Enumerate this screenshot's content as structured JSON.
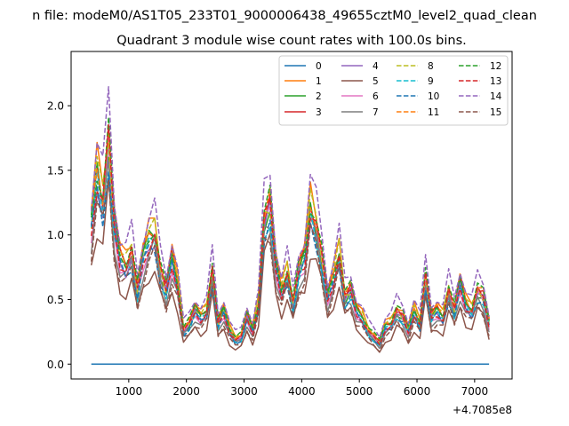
{
  "suptitle": "n file: modeM0/AS1T05_233T01_9000006438_49655cztM0_level2_quad_clean",
  "chart_data": {
    "type": "line",
    "title": "Quadrant 3 module wise count rates with 100.0s bins.",
    "xlabel": "",
    "ylabel": "",
    "x_offset_label": "+4.7085e8",
    "xlim": [
      0,
      7650
    ],
    "ylim": [
      -0.115,
      2.42
    ],
    "xticks": [
      1000,
      2000,
      3000,
      4000,
      5000,
      6000,
      7000
    ],
    "yticks": [
      0.0,
      0.5,
      1.0,
      1.5,
      2.0
    ],
    "ytick_labels": [
      "0.0",
      "0.5",
      "1.0",
      "1.5",
      "2.0"
    ],
    "grid": false,
    "legend_position": "top-right",
    "legend_columns": 4,
    "x": [
      350,
      450,
      550,
      650,
      750,
      850,
      950,
      1050,
      1150,
      1250,
      1350,
      1450,
      1550,
      1650,
      1750,
      1850,
      1950,
      2050,
      2150,
      2250,
      2350,
      2450,
      2550,
      2650,
      2750,
      2850,
      2950,
      3050,
      3150,
      3250,
      3350,
      3450,
      3550,
      3650,
      3750,
      3850,
      3950,
      4050,
      4150,
      4250,
      4350,
      4450,
      4550,
      4650,
      4750,
      4850,
      4950,
      5050,
      5150,
      5250,
      5350,
      5450,
      5550,
      5650,
      5750,
      5850,
      5950,
      6050,
      6150,
      6250,
      6350,
      6450,
      6550,
      6650,
      6750,
      6850,
      6950,
      7050,
      7150,
      7250
    ],
    "base": [
      1.05,
      1.45,
      1.25,
      1.7,
      1.05,
      0.8,
      0.75,
      0.85,
      0.55,
      0.8,
      0.95,
      1.0,
      0.7,
      0.55,
      0.8,
      0.6,
      0.25,
      0.3,
      0.4,
      0.35,
      0.4,
      0.7,
      0.3,
      0.4,
      0.25,
      0.18,
      0.2,
      0.35,
      0.25,
      0.45,
      1.1,
      1.2,
      0.75,
      0.55,
      0.7,
      0.45,
      0.7,
      0.8,
      1.2,
      1.05,
      0.8,
      0.5,
      0.65,
      0.85,
      0.5,
      0.55,
      0.4,
      0.35,
      0.25,
      0.2,
      0.15,
      0.28,
      0.3,
      0.4,
      0.35,
      0.25,
      0.4,
      0.3,
      0.65,
      0.35,
      0.4,
      0.35,
      0.55,
      0.4,
      0.6,
      0.45,
      0.4,
      0.55,
      0.5,
      0.3
    ],
    "series": [
      {
        "name": "0",
        "color": "#1f77b4",
        "dash": false,
        "scale": 0.0,
        "offset": 0.0,
        "phase": 0.0
      },
      {
        "name": "1",
        "color": "#ff7f0e",
        "dash": false,
        "scale": 1.08,
        "offset": 0.02,
        "phase": 0.3
      },
      {
        "name": "2",
        "color": "#2ca02c",
        "dash": false,
        "scale": 1.02,
        "offset": 0.0,
        "phase": 1.1
      },
      {
        "name": "3",
        "color": "#d62728",
        "dash": false,
        "scale": 1.05,
        "offset": 0.01,
        "phase": 1.9
      },
      {
        "name": "4",
        "color": "#9467bd",
        "dash": false,
        "scale": 0.98,
        "offset": 0.0,
        "phase": 2.6
      },
      {
        "name": "5",
        "color": "#8c564b",
        "dash": false,
        "scale": 0.78,
        "offset": -0.03,
        "phase": 3.4
      },
      {
        "name": "6",
        "color": "#e377c2",
        "dash": false,
        "scale": 0.97,
        "offset": 0.0,
        "phase": 4.2
      },
      {
        "name": "7",
        "color": "#7f7f7f",
        "dash": false,
        "scale": 0.9,
        "offset": 0.0,
        "phase": 5.0
      },
      {
        "name": "8",
        "color": "#bcbd22",
        "dash": true,
        "scale": 1.03,
        "offset": 0.02,
        "phase": 5.7
      },
      {
        "name": "9",
        "color": "#17becf",
        "dash": true,
        "scale": 0.95,
        "offset": 0.0,
        "phase": 0.7
      },
      {
        "name": "10",
        "color": "#1f77b4",
        "dash": true,
        "scale": 0.93,
        "offset": 0.0,
        "phase": 1.5
      },
      {
        "name": "11",
        "color": "#ff7f0e",
        "dash": true,
        "scale": 1.06,
        "offset": 0.02,
        "phase": 2.2
      },
      {
        "name": "12",
        "color": "#2ca02c",
        "dash": true,
        "scale": 1.04,
        "offset": 0.03,
        "phase": 3.0
      },
      {
        "name": "13",
        "color": "#d62728",
        "dash": true,
        "scale": 1.0,
        "offset": 0.0,
        "phase": 3.8
      },
      {
        "name": "14",
        "color": "#9467bd",
        "dash": true,
        "scale": 1.18,
        "offset": 0.04,
        "phase": 4.6
      },
      {
        "name": "15",
        "color": "#8c564b",
        "dash": true,
        "scale": 0.85,
        "offset": -0.02,
        "phase": 5.3
      }
    ]
  }
}
